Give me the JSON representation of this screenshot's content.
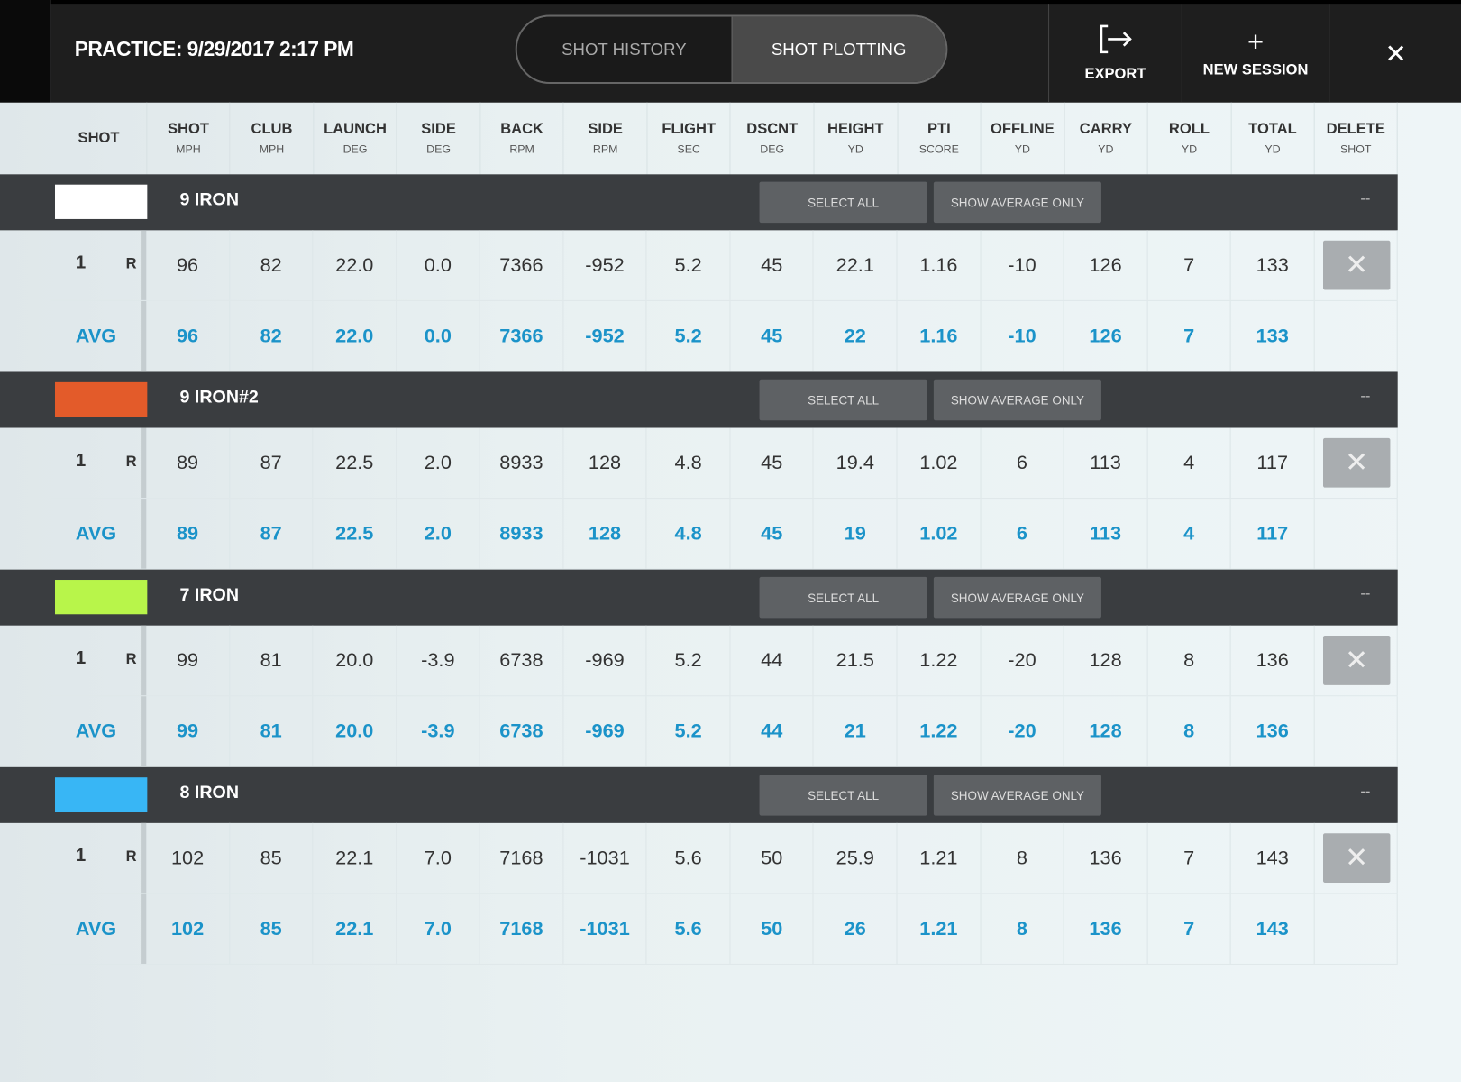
{
  "header": {
    "title": "PRACTICE: 9/29/2017 2:17 PM",
    "tabs": [
      {
        "label": "SHOT HISTORY",
        "active": false
      },
      {
        "label": "SHOT PLOTTING",
        "active": true
      }
    ],
    "export_label": "EXPORT",
    "export_icon": "export-icon",
    "new_session_label": "NEW SESSION",
    "new_session_icon": "+",
    "close_icon": "✕"
  },
  "columns": [
    {
      "a": "SHOT",
      "b": ""
    },
    {
      "a": "SHOT",
      "b": "MPH"
    },
    {
      "a": "CLUB",
      "b": "MPH"
    },
    {
      "a": "LAUNCH",
      "b": "DEG"
    },
    {
      "a": "SIDE",
      "b": "DEG"
    },
    {
      "a": "BACK",
      "b": "RPM"
    },
    {
      "a": "SIDE",
      "b": "RPM"
    },
    {
      "a": "FLIGHT",
      "b": "SEC"
    },
    {
      "a": "DSCNT",
      "b": "DEG"
    },
    {
      "a": "HEIGHT",
      "b": "YD"
    },
    {
      "a": "PTI",
      "b": "SCORE"
    },
    {
      "a": "OFFLINE",
      "b": "YD"
    },
    {
      "a": "CARRY",
      "b": "YD"
    },
    {
      "a": "ROLL",
      "b": "YD"
    },
    {
      "a": "TOTAL",
      "b": "YD"
    },
    {
      "a": "DELETE",
      "b": "SHOT"
    }
  ],
  "labels": {
    "select_all": "SELECT ALL",
    "show_average": "SHOW AVERAGE ONLY",
    "collapse": "--",
    "avg": "AVG",
    "delete_icon": "✕"
  },
  "groups": [
    {
      "name": "9 IRON",
      "color": "#ffffff",
      "shot": {
        "num": "1",
        "hand": "R",
        "values": [
          "96",
          "82",
          "22.0",
          "0.0",
          "7366",
          "-952",
          "5.2",
          "45",
          "22.1",
          "1.16",
          "-10",
          "126",
          "7",
          "133"
        ]
      },
      "avg": [
        "96",
        "82",
        "22.0",
        "0.0",
        "7366",
        "-952",
        "5.2",
        "45",
        "22",
        "1.16",
        "-10",
        "126",
        "7",
        "133"
      ]
    },
    {
      "name": "9 IRON#2",
      "color": "#e35b2a",
      "shot": {
        "num": "1",
        "hand": "R",
        "values": [
          "89",
          "87",
          "22.5",
          "2.0",
          "8933",
          "128",
          "4.8",
          "45",
          "19.4",
          "1.02",
          "6",
          "113",
          "4",
          "117"
        ]
      },
      "avg": [
        "89",
        "87",
        "22.5",
        "2.0",
        "8933",
        "128",
        "4.8",
        "45",
        "19",
        "1.02",
        "6",
        "113",
        "4",
        "117"
      ]
    },
    {
      "name": "7 IRON",
      "color": "#b8f54a",
      "shot": {
        "num": "1",
        "hand": "R",
        "values": [
          "99",
          "81",
          "20.0",
          "-3.9",
          "6738",
          "-969",
          "5.2",
          "44",
          "21.5",
          "1.22",
          "-20",
          "128",
          "8",
          "136"
        ]
      },
      "avg": [
        "99",
        "81",
        "20.0",
        "-3.9",
        "6738",
        "-969",
        "5.2",
        "44",
        "21",
        "1.22",
        "-20",
        "128",
        "8",
        "136"
      ]
    },
    {
      "name": "8 IRON",
      "color": "#38b6f5",
      "shot": {
        "num": "1",
        "hand": "R",
        "values": [
          "102",
          "85",
          "22.1",
          "7.0",
          "7168",
          "-1031",
          "5.6",
          "50",
          "25.9",
          "1.21",
          "8",
          "136",
          "7",
          "143"
        ]
      },
      "avg": [
        "102",
        "85",
        "22.1",
        "7.0",
        "7168",
        "-1031",
        "5.6",
        "50",
        "26",
        "1.21",
        "8",
        "136",
        "7",
        "143"
      ]
    }
  ]
}
